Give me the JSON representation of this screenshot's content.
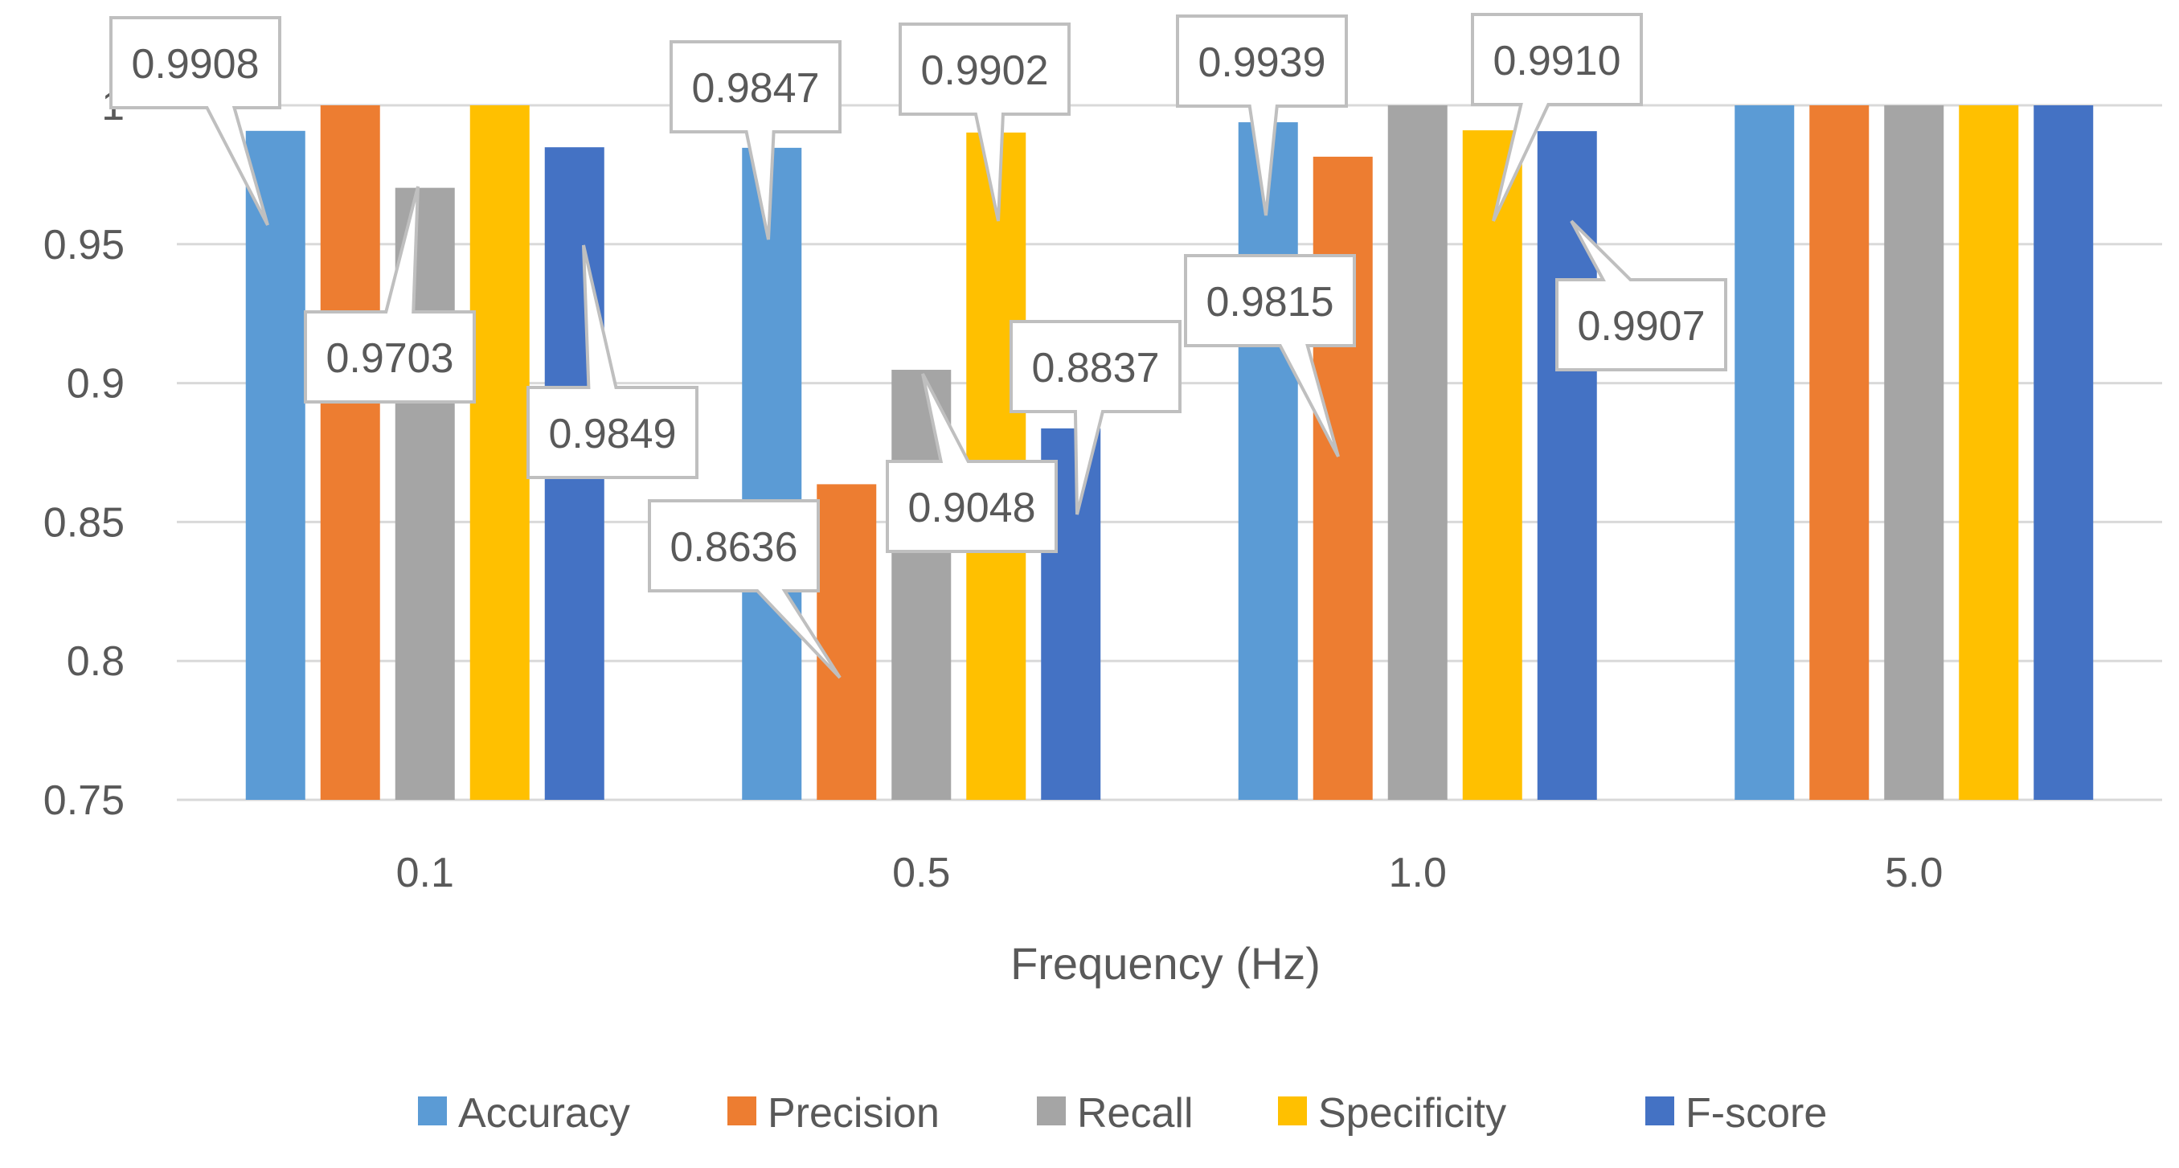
{
  "colors": {
    "Accuracy": "#5b9bd5",
    "Precision": "#ed7d31",
    "Recall": "#a5a5a5",
    "Specificity": "#ffc000",
    "F-score": "#4472c4",
    "grid": "#d9d9d9",
    "axis_text": "#595959",
    "callout_border": "#bfbfbf"
  },
  "chart_data": {
    "type": "bar",
    "title": "",
    "xlabel": "Frequency (Hz)",
    "ylabel": "",
    "ylim": [
      0.75,
      1.0
    ],
    "yticks": [
      "0.75",
      "0.8",
      "0.85",
      "0.9",
      "0.95",
      "1"
    ],
    "categories": [
      "0.1",
      "0.5",
      "1.0",
      "5.0"
    ],
    "series": [
      {
        "name": "Accuracy",
        "values": [
          0.9908,
          0.9847,
          0.9939,
          1.0
        ]
      },
      {
        "name": "Precision",
        "values": [
          1.0,
          0.8636,
          0.9815,
          1.0
        ]
      },
      {
        "name": "Recall",
        "values": [
          0.9703,
          0.9048,
          1.0,
          1.0
        ]
      },
      {
        "name": "Specificity",
        "values": [
          1.0,
          0.9902,
          0.991,
          1.0
        ]
      },
      {
        "name": "F-score",
        "values": [
          0.9849,
          0.8837,
          0.9907,
          1.0
        ]
      }
    ],
    "legend_position": "bottom",
    "annotations": [
      {
        "text": "0.9908",
        "series": "Accuracy",
        "category": "0.1"
      },
      {
        "text": "0.9703",
        "series": "Recall",
        "category": "0.1"
      },
      {
        "text": "0.9849",
        "series": "F-score",
        "category": "0.1"
      },
      {
        "text": "0.9847",
        "series": "Accuracy",
        "category": "0.5"
      },
      {
        "text": "0.8636",
        "series": "Precision",
        "category": "0.5"
      },
      {
        "text": "0.9048",
        "series": "Recall",
        "category": "0.5"
      },
      {
        "text": "0.9902",
        "series": "Specificity",
        "category": "0.5"
      },
      {
        "text": "0.8837",
        "series": "F-score",
        "category": "0.5"
      },
      {
        "text": "0.9939",
        "series": "Accuracy",
        "category": "1.0"
      },
      {
        "text": "0.9815",
        "series": "Precision",
        "category": "1.0"
      },
      {
        "text": "0.9910",
        "series": "Specificity",
        "category": "1.0"
      },
      {
        "text": "0.9907",
        "series": "F-score",
        "category": "1.0"
      }
    ]
  }
}
